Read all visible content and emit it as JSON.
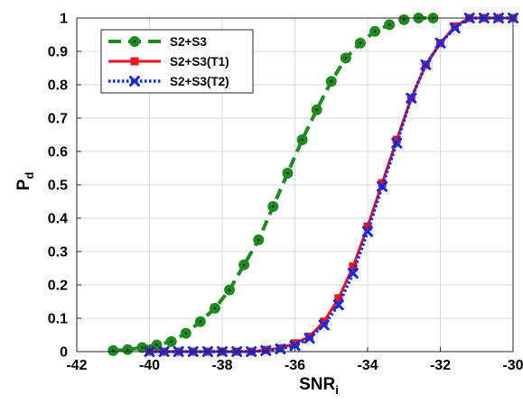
{
  "chart_data": {
    "type": "line",
    "title": "",
    "xlabel": "SNR",
    "xlabel_subscript": "i",
    "ylabel": "P",
    "ylabel_subscript": "d",
    "xlim": [
      -42,
      -30
    ],
    "ylim": [
      0,
      1
    ],
    "xticks": [
      -42,
      -40,
      -38,
      -36,
      -34,
      -32,
      -30
    ],
    "yticks": [
      0,
      0.1,
      0.2,
      0.3,
      0.4,
      0.5,
      0.6,
      0.7,
      0.8,
      0.9,
      1
    ],
    "grid": true,
    "legend_placement": "top-left",
    "series": [
      {
        "name": "S2+S3",
        "color": "#1f8a1f",
        "line_style": "dashed",
        "marker": "circle",
        "x": [
          -41.0,
          -40.6,
          -40.2,
          -39.8,
          -39.4,
          -39.0,
          -38.6,
          -38.2,
          -37.8,
          -37.4,
          -37.0,
          -36.6,
          -36.2,
          -35.8,
          -35.4,
          -35.0,
          -34.6,
          -34.2,
          -33.8,
          -33.4,
          -33.0,
          -32.6,
          -32.2
        ],
        "y": [
          0.003,
          0.006,
          0.012,
          0.02,
          0.03,
          0.055,
          0.09,
          0.13,
          0.185,
          0.26,
          0.335,
          0.435,
          0.535,
          0.635,
          0.725,
          0.81,
          0.88,
          0.925,
          0.96,
          0.98,
          0.995,
          1.0,
          1.0
        ]
      },
      {
        "name": "S2+S3(T1)",
        "color": "#e8141e",
        "line_style": "solid",
        "marker": "square",
        "x": [
          -40.0,
          -39.6,
          -39.2,
          -38.8,
          -38.4,
          -38.0,
          -37.6,
          -37.2,
          -36.8,
          -36.4,
          -36.0,
          -35.6,
          -35.2,
          -34.8,
          -34.4,
          -34.0,
          -33.6,
          -33.2,
          -32.8,
          -32.4,
          -32.0,
          -31.6,
          -31.2,
          -30.8,
          -30.4,
          -30.0
        ],
        "y": [
          0.0,
          0.0,
          0.0,
          0.0,
          0.0,
          0.0,
          0.0,
          0.0,
          0.005,
          0.01,
          0.025,
          0.045,
          0.09,
          0.16,
          0.255,
          0.375,
          0.505,
          0.635,
          0.76,
          0.86,
          0.925,
          0.975,
          1.0,
          1.0,
          1.0,
          1.0
        ]
      },
      {
        "name": "S2+S3(T2)",
        "color": "#1428e0",
        "line_style": "dotted",
        "marker": "x",
        "x": [
          -40.0,
          -39.6,
          -39.2,
          -38.8,
          -38.4,
          -38.0,
          -37.6,
          -37.2,
          -36.8,
          -36.4,
          -36.0,
          -35.6,
          -35.2,
          -34.8,
          -34.4,
          -34.0,
          -33.6,
          -33.2,
          -32.8,
          -32.4,
          -32.0,
          -31.6,
          -31.2,
          -30.8,
          -30.4,
          -30.0
        ],
        "y": [
          0.0,
          0.0,
          0.0,
          0.0,
          0.0,
          0.0,
          0.0,
          0.0,
          0.003,
          0.008,
          0.018,
          0.04,
          0.08,
          0.14,
          0.235,
          0.36,
          0.495,
          0.625,
          0.76,
          0.86,
          0.925,
          0.97,
          1.0,
          1.0,
          1.0,
          1.0
        ]
      }
    ]
  }
}
